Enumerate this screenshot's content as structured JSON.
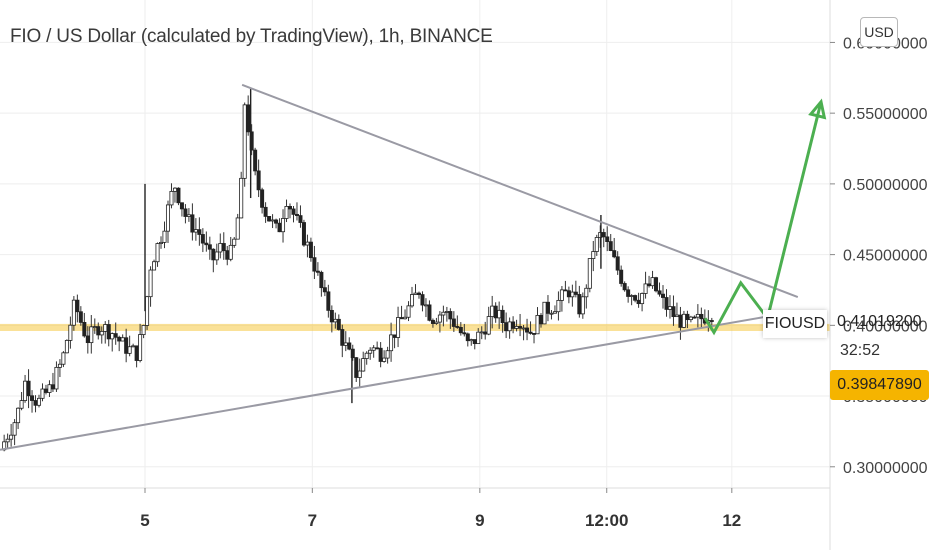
{
  "header": {
    "title": "FIO / US Dollar (calculated by TradingView), 1h, BINANCE",
    "currency_button": "USD"
  },
  "symbol_label": "FIOUSD",
  "last_price": "0.41019200",
  "countdown": "32:52",
  "price_tag": "0.39847890",
  "chart_data": {
    "type": "candlestick",
    "title": "FIO / US Dollar (calculated by TradingView), 1h, BINANCE",
    "y_ticks": [
      0.3,
      0.35,
      0.4,
      0.45,
      0.5,
      0.55,
      0.6
    ],
    "y_tick_labels": [
      "0.30000000",
      "0.35000000",
      "0.40000000",
      "0.45000000",
      "0.50000000",
      "0.55000000",
      "0.60000000"
    ],
    "x_tick_labels": [
      "5",
      "7",
      "9",
      "12:00",
      "12"
    ],
    "ylim": [
      0.285,
      0.63
    ],
    "colors": {
      "candle": "#222222",
      "trend": "#9a9aa4",
      "projection": "#4caf50",
      "support": "#f5c842",
      "price_tag": "#f5b400"
    },
    "candle_path": [
      [
        0,
        0.312
      ],
      [
        0.02,
        0.335
      ],
      [
        0.03,
        0.36
      ],
      [
        0.045,
        0.345
      ],
      [
        0.06,
        0.355
      ],
      [
        0.075,
        0.375
      ],
      [
        0.09,
        0.415
      ],
      [
        0.105,
        0.39
      ],
      [
        0.12,
        0.4
      ],
      [
        0.135,
        0.395
      ],
      [
        0.15,
        0.385
      ],
      [
        0.165,
        0.38
      ],
      [
        0.175,
        0.405
      ],
      [
        0.18,
        0.44
      ],
      [
        0.195,
        0.465
      ],
      [
        0.21,
        0.5
      ],
      [
        0.225,
        0.475
      ],
      [
        0.24,
        0.465
      ],
      [
        0.255,
        0.445
      ],
      [
        0.265,
        0.455
      ],
      [
        0.28,
        0.45
      ],
      [
        0.29,
        0.49
      ],
      [
        0.295,
        0.56
      ],
      [
        0.305,
        0.51
      ],
      [
        0.32,
        0.48
      ],
      [
        0.335,
        0.465
      ],
      [
        0.345,
        0.49
      ],
      [
        0.36,
        0.47
      ],
      [
        0.375,
        0.45
      ],
      [
        0.39,
        0.42
      ],
      [
        0.405,
        0.4
      ],
      [
        0.42,
        0.38
      ],
      [
        0.43,
        0.365
      ],
      [
        0.445,
        0.385
      ],
      [
        0.46,
        0.38
      ],
      [
        0.475,
        0.395
      ],
      [
        0.49,
        0.41
      ],
      [
        0.505,
        0.425
      ],
      [
        0.52,
        0.405
      ],
      [
        0.535,
        0.41
      ],
      [
        0.55,
        0.4
      ],
      [
        0.565,
        0.385
      ],
      [
        0.58,
        0.395
      ],
      [
        0.595,
        0.41
      ],
      [
        0.61,
        0.4
      ],
      [
        0.625,
        0.405
      ],
      [
        0.64,
        0.395
      ],
      [
        0.655,
        0.41
      ],
      [
        0.67,
        0.415
      ],
      [
        0.685,
        0.425
      ],
      [
        0.7,
        0.41
      ],
      [
        0.715,
        0.455
      ],
      [
        0.725,
        0.465
      ],
      [
        0.74,
        0.445
      ],
      [
        0.755,
        0.425
      ],
      [
        0.77,
        0.42
      ],
      [
        0.785,
        0.43
      ],
      [
        0.8,
        0.415
      ],
      [
        0.815,
        0.405
      ],
      [
        0.83,
        0.4
      ],
      [
        0.845,
        0.405
      ],
      [
        0.86,
        0.41
      ]
    ],
    "trendline_upper": [
      [
        0.2917,
        0.57
      ],
      [
        0.9612,
        0.42
      ]
    ],
    "trendline_lower": [
      [
        0.0,
        0.312
      ],
      [
        0.9612,
        0.41
      ]
    ],
    "projection": [
      [
        0.8495,
        0.405
      ],
      [
        0.8602,
        0.395
      ],
      [
        0.8925,
        0.43
      ],
      [
        0.9247,
        0.405
      ],
      [
        0.9892,
        0.558
      ]
    ],
    "support_zone": [
      0.396,
      0.401
    ]
  }
}
